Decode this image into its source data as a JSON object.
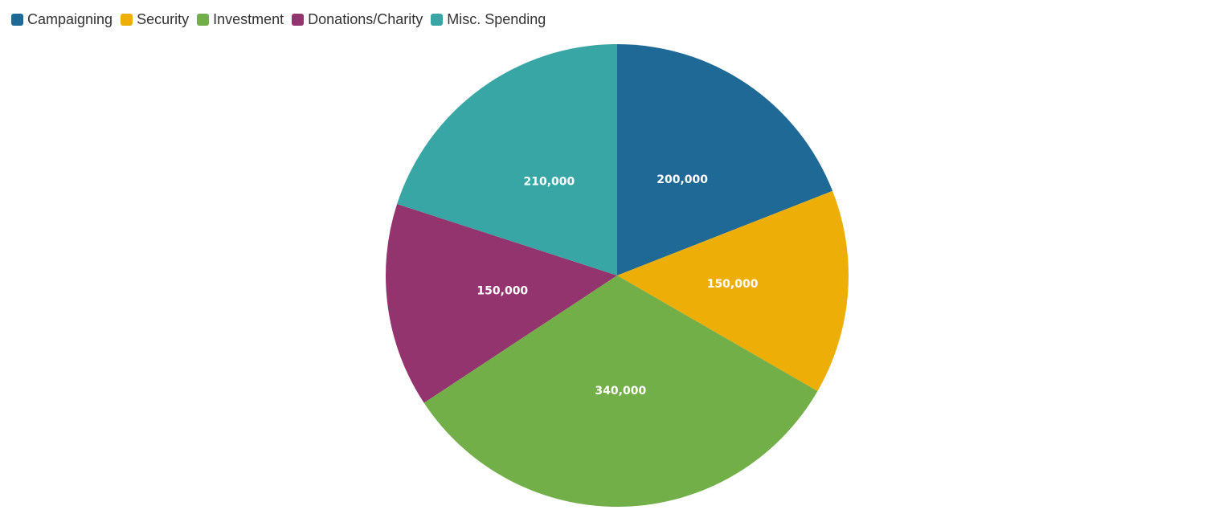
{
  "chart_data": {
    "type": "pie",
    "legend_position": "top-left",
    "slices": [
      {
        "label": "Campaigning",
        "value": 200000,
        "display": "200,000",
        "color": "#1F6996"
      },
      {
        "label": "Security",
        "value": 150000,
        "display": "150,000",
        "color": "#EDAE07"
      },
      {
        "label": "Investment",
        "value": 340000,
        "display": "340,000",
        "color": "#73AF48"
      },
      {
        "label": "Donations/Charity",
        "value": 150000,
        "display": "150,000",
        "color": "#94346E"
      },
      {
        "label": "Misc. Spending",
        "value": 210000,
        "display": "210,000",
        "color": "#38A6A5"
      }
    ]
  }
}
